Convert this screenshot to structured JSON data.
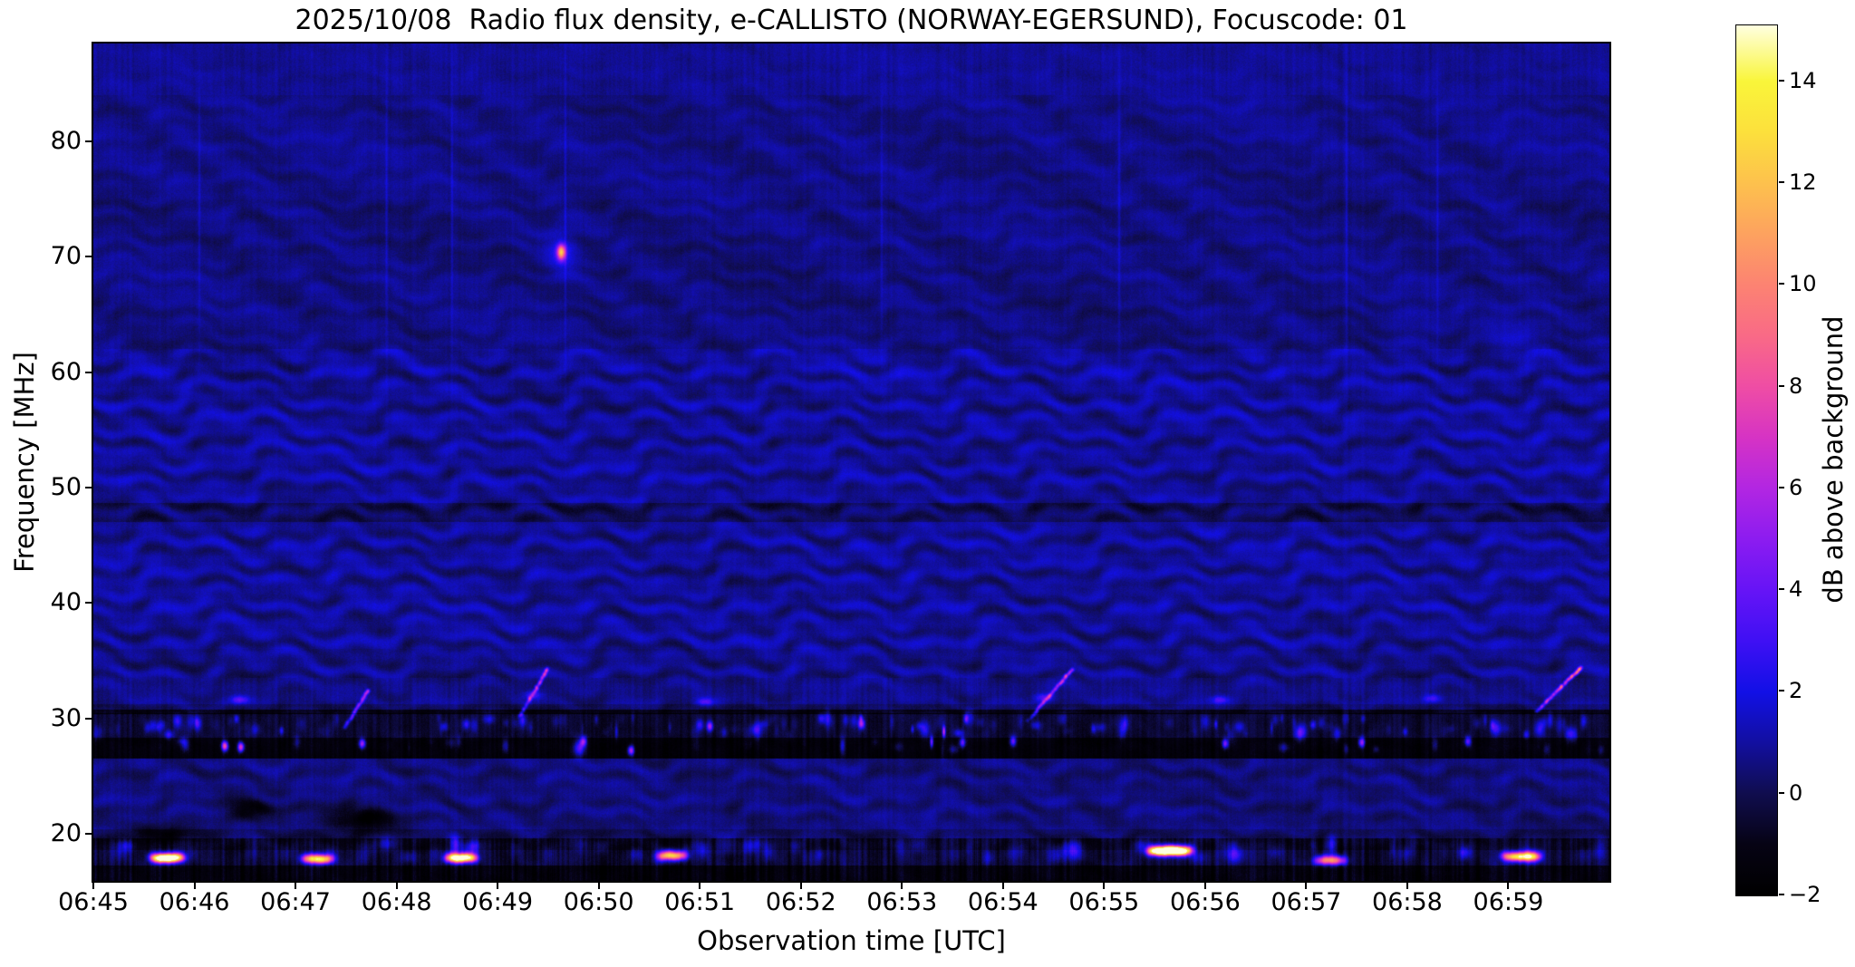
{
  "chart_data": {
    "type": "heatmap",
    "subtype": "radio-spectrogram",
    "title": "2025/10/08  Radio flux density, e-CALLISTO (NORWAY-EGERSUND), Focuscode: 01",
    "xlabel": "Observation time [UTC]",
    "ylabel": "Frequency [MHz]",
    "colorbar_label": "dB above background",
    "date": "2025/10/08",
    "station": "NORWAY-EGERSUND",
    "focuscode": "01",
    "x_tick_labels": [
      "06:45",
      "06:46",
      "06:47",
      "06:48",
      "06:49",
      "06:50",
      "06:51",
      "06:52",
      "06:53",
      "06:54",
      "06:55",
      "06:56",
      "06:57",
      "06:58",
      "06:59"
    ],
    "time_range_utc": [
      "06:45:00",
      "07:00:00"
    ],
    "time_span_minutes": 15,
    "y_tick_values": [
      20,
      30,
      40,
      50,
      60,
      70,
      80
    ],
    "freq_range_mhz": [
      15.9,
      88.5
    ],
    "colorbar_ticks": [
      -2,
      0,
      2,
      4,
      6,
      8,
      10,
      12,
      14
    ],
    "colorbar_tick_labels": [
      "−2",
      "0",
      "2",
      "4",
      "6",
      "8",
      "10",
      "12",
      "14"
    ],
    "colorbar_range_db": [
      -2,
      15.1
    ],
    "grid": false,
    "legend": "colorbar-right",
    "colormap_stops": [
      {
        "v": -2.0,
        "c": "#000000"
      },
      {
        "v": -1.0,
        "c": "#060314"
      },
      {
        "v": 0.0,
        "c": "#100d4e"
      },
      {
        "v": 1.0,
        "c": "#120fa0"
      },
      {
        "v": 2.0,
        "c": "#1210e6"
      },
      {
        "v": 3.0,
        "c": "#3f10f4"
      },
      {
        "v": 4.0,
        "c": "#6614f6"
      },
      {
        "v": 5.0,
        "c": "#8c1cf0"
      },
      {
        "v": 6.0,
        "c": "#b226e2"
      },
      {
        "v": 7.0,
        "c": "#d633c4"
      },
      {
        "v": 8.0,
        "c": "#ef4da4"
      },
      {
        "v": 9.0,
        "c": "#f96a86"
      },
      {
        "v": 10.0,
        "c": "#fc8372"
      },
      {
        "v": 11.0,
        "c": "#fda25f"
      },
      {
        "v": 12.0,
        "c": "#fdc14d"
      },
      {
        "v": 13.0,
        "c": "#fce03c"
      },
      {
        "v": 14.0,
        "c": "#f9f53a"
      },
      {
        "v": 15.1,
        "c": "#ffffe0"
      }
    ],
    "features": {
      "background_level_db": 0.8,
      "rfi_dark_band_mhz": [
        26.5,
        30.4
      ],
      "rfi_speckle_rows_mhz": [
        29.3,
        27.6
      ],
      "dark_wavy_band_mhz": [
        47.0,
        48.7
      ],
      "bottom_dark_band_mhz": [
        15.9,
        17.2
      ],
      "point_source": {
        "t": 4.63,
        "f": 70.4,
        "amp": 10
      },
      "low_band_bursts": [
        {
          "t0": 0.58,
          "t1": 0.88,
          "f": 17.9,
          "amp": 7.5
        },
        {
          "t0": 2.08,
          "t1": 2.36,
          "f": 17.8,
          "amp": 5.5
        },
        {
          "t0": 3.5,
          "t1": 3.78,
          "f": 17.9,
          "amp": 7.0
        },
        {
          "t0": 5.6,
          "t1": 5.86,
          "f": 18.1,
          "amp": 4.5
        },
        {
          "t0": 10.45,
          "t1": 10.85,
          "f": 18.5,
          "amp": 9.0
        },
        {
          "t0": 12.1,
          "t1": 12.38,
          "f": 17.7,
          "amp": 4.0
        },
        {
          "t0": 13.95,
          "t1": 14.3,
          "f": 18.0,
          "amp": 5.0
        }
      ],
      "band_dots": [
        {
          "t": 1.3,
          "f": 27.6,
          "amp": 8.0
        },
        {
          "t": 1.46,
          "f": 27.5,
          "amp": 9.0
        },
        {
          "t": 2.66,
          "f": 27.8,
          "amp": 7.0
        },
        {
          "t": 4.85,
          "f": 28.0,
          "amp": 6.0
        },
        {
          "t": 5.32,
          "f": 27.2,
          "amp": 7.5
        },
        {
          "t": 6.1,
          "f": 29.3,
          "amp": 6.0
        },
        {
          "t": 7.6,
          "f": 29.5,
          "amp": 6.5
        },
        {
          "t": 8.6,
          "f": 27.9,
          "amp": 6.0
        },
        {
          "t": 9.1,
          "f": 28.0,
          "amp": 5.5
        },
        {
          "t": 11.2,
          "f": 27.8,
          "amp": 6.0
        },
        {
          "t": 12.55,
          "f": 27.9,
          "amp": 7.0
        },
        {
          "t": 13.6,
          "f": 28.0,
          "amp": 5.5
        }
      ],
      "upper_dashes": [
        {
          "t": 1.45,
          "f": 31.6,
          "amp": 3.0
        },
        {
          "t": 4.35,
          "f": 32.0,
          "amp": 2.5
        },
        {
          "t": 6.05,
          "f": 31.4,
          "amp": 2.8
        },
        {
          "t": 9.4,
          "f": 31.8,
          "amp": 2.5
        },
        {
          "t": 11.15,
          "f": 31.6,
          "amp": 2.6
        },
        {
          "t": 13.25,
          "f": 31.7,
          "amp": 2.4
        }
      ],
      "drift_bursts": [
        {
          "t0": 2.49,
          "t1": 2.72,
          "f0": 29.2,
          "f1": 32.4,
          "amp": 3.2
        },
        {
          "t0": 4.22,
          "t1": 4.5,
          "f0": 30.2,
          "f1": 34.3,
          "amp": 3.8
        },
        {
          "t0": 9.25,
          "t1": 9.68,
          "f0": 29.8,
          "f1": 34.2,
          "amp": 4.5
        },
        {
          "t0": 14.28,
          "t1": 14.72,
          "f0": 30.6,
          "f1": 34.4,
          "amp": 5.5
        }
      ],
      "dark_patches": [
        {
          "t0": 0.35,
          "t1": 0.95,
          "f0": 19.2,
          "f1": 20.8
        },
        {
          "t0": 2.3,
          "t1": 3.05,
          "f0": 20.0,
          "f1": 22.5
        },
        {
          "t0": 1.25,
          "t1": 1.8,
          "f0": 21.2,
          "f1": 23.0
        }
      ],
      "light_patches": [
        {
          "t0": 12.8,
          "t1": 13.3,
          "f0": 60.5,
          "f1": 65.5
        },
        {
          "t0": 13.85,
          "t1": 14.35,
          "f0": 61.0,
          "f1": 66.0
        }
      ],
      "vertical_streaks_t": [
        1.05,
        2.9,
        3.55,
        4.67,
        7.8,
        10.15,
        12.4,
        13.3
      ]
    }
  }
}
